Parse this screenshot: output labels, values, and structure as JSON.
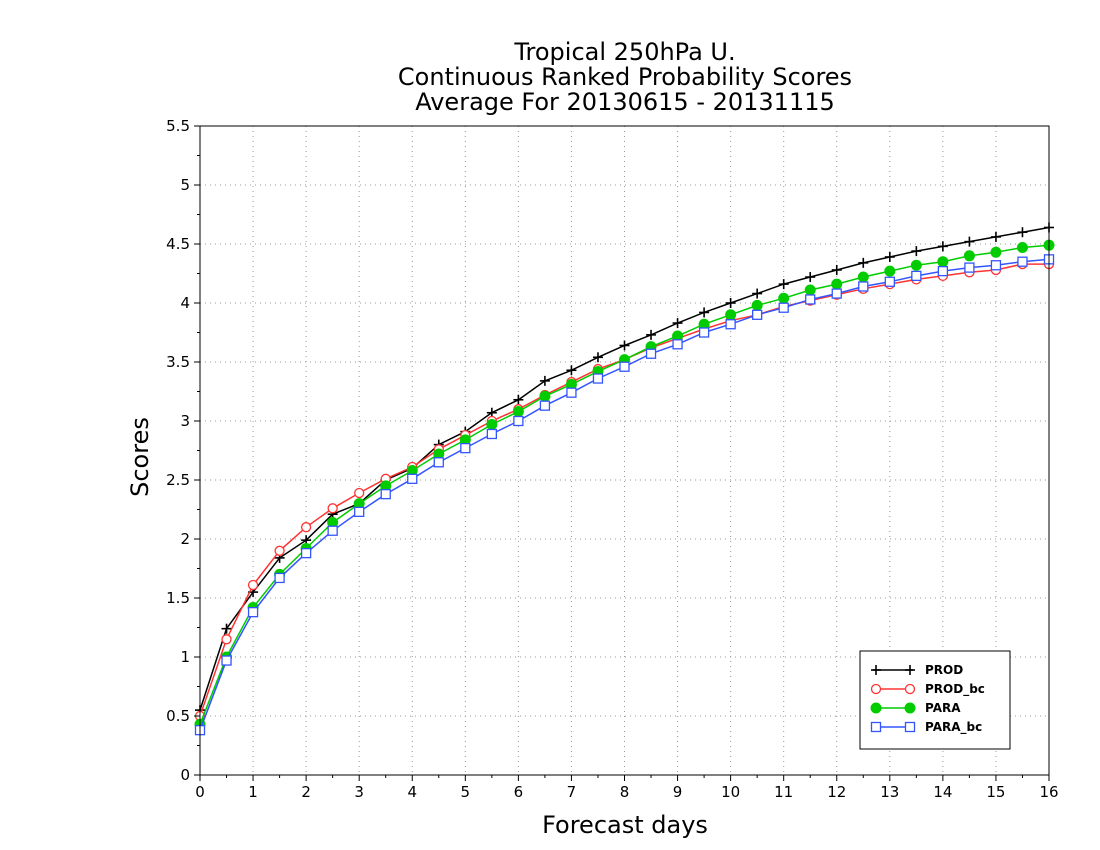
{
  "chart_data": {
    "type": "line",
    "title_lines": [
      "Tropical 250hPa U.",
      "Continuous Ranked Probability Scores",
      "Average For 20130615 - 20131115"
    ],
    "xlabel": "Forecast days",
    "ylabel": "Scores",
    "xlim": [
      0,
      16
    ],
    "ylim": [
      0,
      5.5
    ],
    "x_ticks": [
      "0",
      "1",
      "2",
      "3",
      "4",
      "5",
      "6",
      "7",
      "8",
      "9",
      "10",
      "11",
      "12",
      "13",
      "14",
      "15",
      "16"
    ],
    "y_ticks": [
      "0",
      "0.5",
      "1",
      "1.5",
      "2",
      "2.5",
      "3",
      "3.5",
      "4",
      "4.5",
      "5",
      "5.5"
    ],
    "grid": true,
    "legend_position": "bottom-right",
    "x": [
      0,
      0.5,
      1,
      1.5,
      2,
      2.5,
      3,
      3.5,
      4,
      4.5,
      5,
      5.5,
      6,
      6.5,
      7,
      7.5,
      8,
      8.5,
      9,
      9.5,
      10,
      10.5,
      11,
      11.5,
      12,
      12.5,
      13,
      13.5,
      14,
      14.5,
      15,
      15.5,
      16
    ],
    "series": [
      {
        "name": "PROD",
        "color": "#000000",
        "marker": "plus",
        "values": [
          0.55,
          1.24,
          1.55,
          1.84,
          1.99,
          2.21,
          2.3,
          2.5,
          2.6,
          2.8,
          2.91,
          3.07,
          3.18,
          3.34,
          3.43,
          3.54,
          3.64,
          3.73,
          3.83,
          3.92,
          4.0,
          4.08,
          4.16,
          4.22,
          4.28,
          4.34,
          4.39,
          4.44,
          4.48,
          4.52,
          4.56,
          4.6,
          4.64
        ]
      },
      {
        "name": "PROD_bc",
        "color": "#ff3333",
        "marker": "open-circle",
        "values": [
          0.5,
          1.15,
          1.61,
          1.9,
          2.1,
          2.26,
          2.39,
          2.51,
          2.61,
          2.76,
          2.88,
          3.0,
          3.1,
          3.22,
          3.33,
          3.44,
          3.52,
          3.62,
          3.7,
          3.78,
          3.85,
          3.9,
          3.97,
          4.02,
          4.07,
          4.12,
          4.16,
          4.2,
          4.23,
          4.26,
          4.28,
          4.33,
          4.33
        ]
      },
      {
        "name": "PARA",
        "color": "#00cc00",
        "marker": "filled-circle",
        "values": [
          0.43,
          1.0,
          1.42,
          1.7,
          1.92,
          2.14,
          2.3,
          2.45,
          2.58,
          2.72,
          2.84,
          2.97,
          3.08,
          3.21,
          3.31,
          3.42,
          3.52,
          3.63,
          3.72,
          3.82,
          3.9,
          3.98,
          4.04,
          4.11,
          4.16,
          4.22,
          4.27,
          4.32,
          4.35,
          4.4,
          4.43,
          4.47,
          4.49
        ]
      },
      {
        "name": "PARA_bc",
        "color": "#3355ff",
        "marker": "open-square",
        "values": [
          0.38,
          0.97,
          1.38,
          1.67,
          1.88,
          2.07,
          2.23,
          2.38,
          2.51,
          2.65,
          2.77,
          2.89,
          3.0,
          3.13,
          3.24,
          3.36,
          3.46,
          3.57,
          3.65,
          3.75,
          3.82,
          3.9,
          3.96,
          4.03,
          4.08,
          4.14,
          4.18,
          4.23,
          4.27,
          4.3,
          4.32,
          4.35,
          4.37
        ]
      }
    ]
  }
}
